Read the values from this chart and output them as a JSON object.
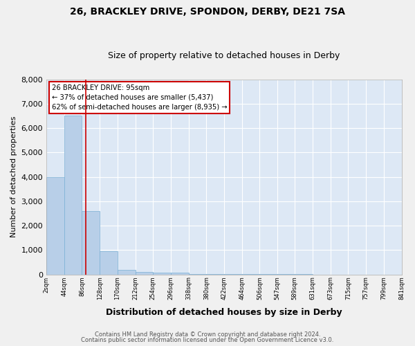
{
  "title1": "26, BRACKLEY DRIVE, SPONDON, DERBY, DE21 7SA",
  "title2": "Size of property relative to detached houses in Derby",
  "xlabel": "Distribution of detached houses by size in Derby",
  "ylabel": "Number of detached properties",
  "footnote1": "Contains HM Land Registry data © Crown copyright and database right 2024.",
  "footnote2": "Contains public sector information licensed under the Open Government Licence v3.0.",
  "property_size": 95,
  "property_label": "26 BRACKLEY DRIVE: 95sqm",
  "annotation_line1": "← 37% of detached houses are smaller (5,437)",
  "annotation_line2": "62% of semi-detached houses are larger (8,935) →",
  "bin_edges": [
    2,
    44,
    86,
    128,
    170,
    212,
    254,
    296,
    338,
    380,
    422,
    464,
    506,
    547,
    589,
    631,
    673,
    715,
    757,
    799,
    841
  ],
  "bar_heights": [
    4000,
    6500,
    2600,
    950,
    200,
    100,
    80,
    60,
    30,
    20,
    15,
    10,
    8,
    5,
    4,
    3,
    2,
    2,
    1,
    1
  ],
  "bar_color": "#b8cfe8",
  "bar_edge_color": "#7aafd4",
  "plot_bg_color": "#dde8f5",
  "fig_bg_color": "#f0f0f0",
  "grid_color": "#ffffff",
  "red_line_color": "#cc0000",
  "annotation_box_color": "#cc0000",
  "annotation_bg": "#ffffff",
  "ylim": [
    0,
    8000
  ],
  "xlim": [
    2,
    841
  ],
  "yticks": [
    0,
    1000,
    2000,
    3000,
    4000,
    5000,
    6000,
    7000,
    8000
  ]
}
